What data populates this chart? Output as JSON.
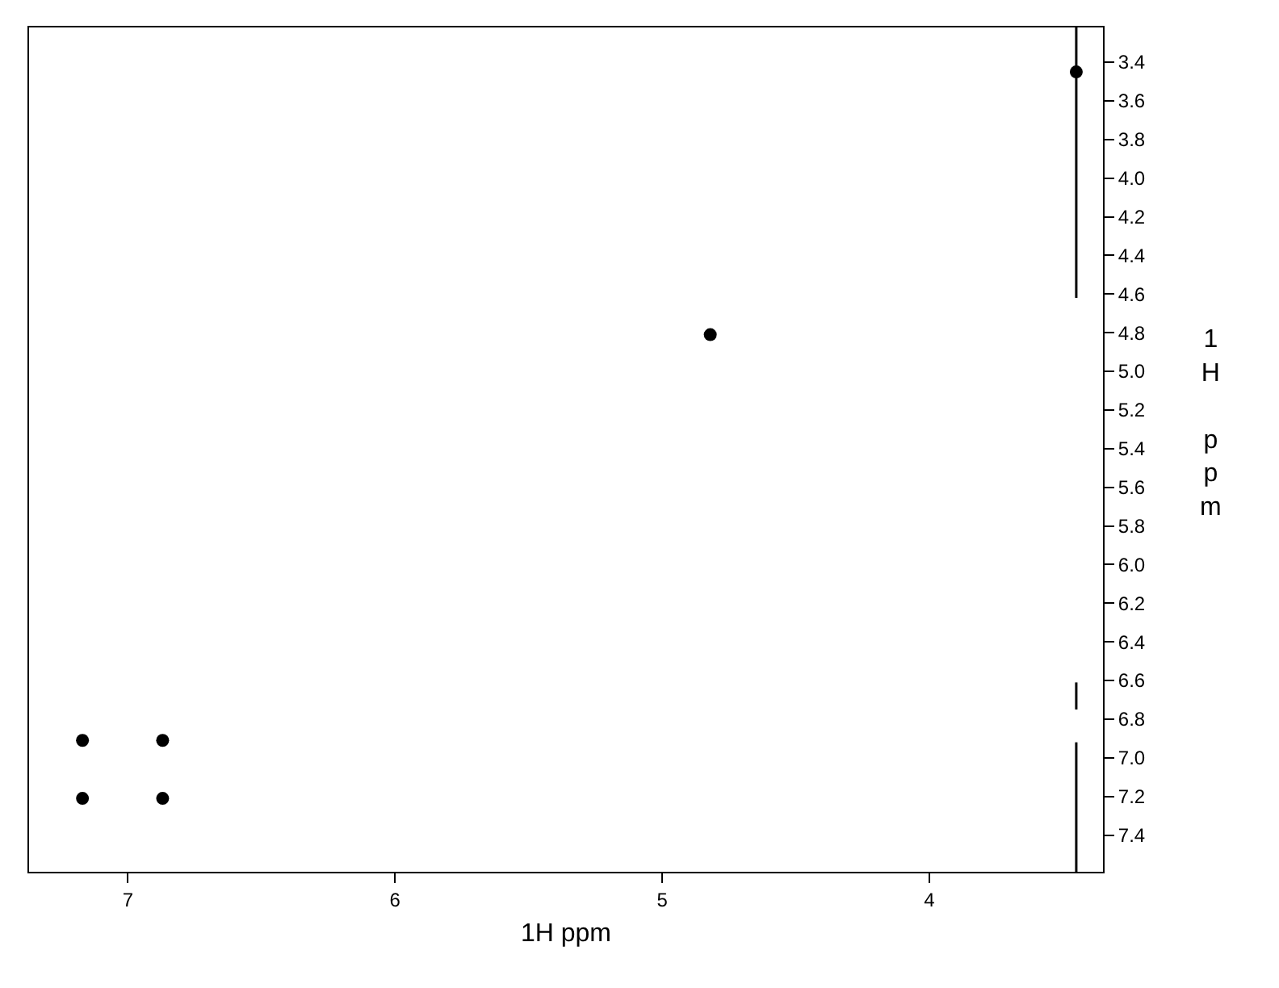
{
  "chart_data": {
    "type": "scatter",
    "xlabel": "1H ppm",
    "ylabel": "1H ppm",
    "xlim": [
      7.37,
      3.35
    ],
    "xticks": [
      7,
      6,
      5,
      4
    ],
    "ylim": [
      7.59,
      3.22
    ],
    "yticks": [
      {
        "value": 3.4,
        "label": "3.4"
      },
      {
        "value": 3.6,
        "label": "3.6"
      },
      {
        "value": 3.8,
        "label": "3.8"
      },
      {
        "value": 4.0,
        "label": "4.0"
      },
      {
        "value": 4.2,
        "label": "4.2"
      },
      {
        "value": 4.4,
        "label": "4.4"
      },
      {
        "value": 4.6,
        "label": "4.6"
      },
      {
        "value": 4.8,
        "label": "4.8"
      },
      {
        "value": 5.0,
        "label": "5.0"
      },
      {
        "value": 5.2,
        "label": "5.2"
      },
      {
        "value": 5.4,
        "label": "5.4"
      },
      {
        "value": 5.6,
        "label": "5.6"
      },
      {
        "value": 5.8,
        "label": "5.8"
      },
      {
        "value": 6.0,
        "label": "6.0"
      },
      {
        "value": 6.2,
        "label": "6.2"
      },
      {
        "value": 6.4,
        "label": "6.4"
      },
      {
        "value": 6.6,
        "label": "6.6"
      },
      {
        "value": 6.8,
        "label": "6.8"
      },
      {
        "value": 7.0,
        "label": "7.0"
      },
      {
        "value": 7.2,
        "label": "7.2"
      },
      {
        "value": 7.4,
        "label": "7.4"
      }
    ],
    "grid": false,
    "series": [
      {
        "color": "#000000",
        "marker": "circle",
        "x": [
          3.45,
          4.82,
          7.17,
          6.87,
          7.17,
          6.87
        ],
        "values": [
          3.45,
          4.81,
          6.91,
          6.91,
          7.21,
          7.21
        ]
      },
      {
        "type": "line",
        "color": "#000000",
        "line_style": "solid",
        "marker": "none",
        "x": [
          3.45,
          3.45
        ],
        "values": [
          3.22,
          4.62
        ]
      },
      {
        "type": "line",
        "color": "#000000",
        "line_style": "solid",
        "marker": "none",
        "x": [
          3.45,
          3.45
        ],
        "values": [
          6.61,
          6.75
        ]
      },
      {
        "type": "line",
        "color": "#000000",
        "line_style": "solid",
        "marker": "none",
        "x": [
          3.45,
          3.45
        ],
        "values": [
          6.92,
          7.59
        ]
      }
    ]
  }
}
